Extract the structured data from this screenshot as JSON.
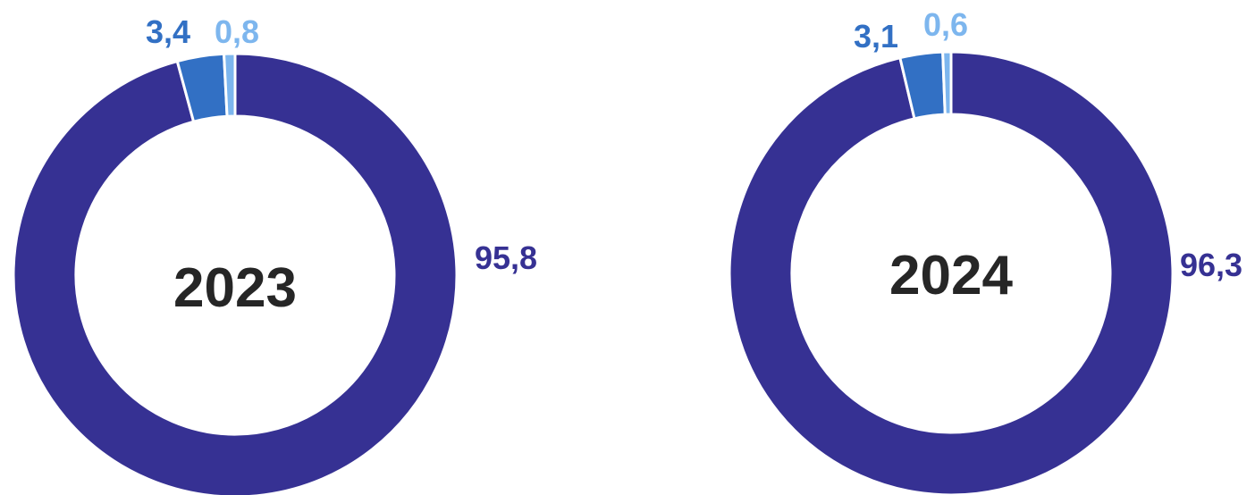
{
  "chart_data": [
    {
      "type": "pie",
      "variant": "donut",
      "title": "2023",
      "slices": [
        {
          "value": 95.8,
          "label": "95,8",
          "color": "#363193"
        },
        {
          "value": 3.4,
          "label": "3,4",
          "color": "#3270C4"
        },
        {
          "value": 0.8,
          "label": "0,8",
          "color": "#7DB6EE"
        }
      ]
    },
    {
      "type": "pie",
      "variant": "donut",
      "title": "2024",
      "slices": [
        {
          "value": 96.3,
          "label": "96,3",
          "color": "#363193"
        },
        {
          "value": 3.1,
          "label": "3,1",
          "color": "#3270C4"
        },
        {
          "value": 0.6,
          "label": "0,6",
          "color": "#7DB6EE"
        }
      ]
    }
  ]
}
